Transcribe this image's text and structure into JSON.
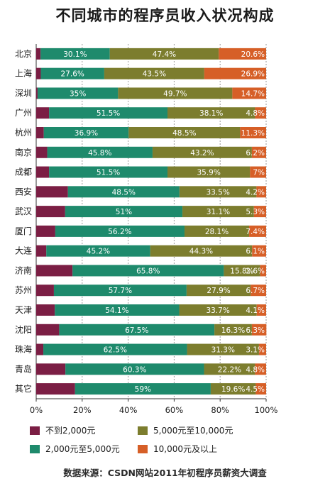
{
  "title": "不同城市的程序员收入状况构成",
  "source": "数据来源：CSDN网站2011年初程序员薪资大调查",
  "colors": [
    "#7b1e44",
    "#1e8a6c",
    "#7c7d2e",
    "#d65f27"
  ],
  "legend": [
    {
      "label": "不到2,000元",
      "color": "#7b1e44"
    },
    {
      "label": "5,000元至10,000元",
      "color": "#7c7d2e"
    },
    {
      "label": "2,000元至5,000元",
      "color": "#1e8a6c"
    },
    {
      "label": "10,000元及以上",
      "color": "#d65f27"
    }
  ],
  "chart_data": {
    "type": "bar",
    "orientation": "horizontal",
    "stacked": true,
    "title": "不同城市的程序员收入状况构成",
    "xlim": [
      0,
      100
    ],
    "x_ticks": [
      "0%",
      "20%",
      "40%",
      "60%",
      "80%",
      "100%"
    ],
    "grid": true,
    "legend_position": "bottom",
    "categories": [
      "北京",
      "上海",
      "深圳",
      "广州",
      "杭州",
      "南京",
      "成都",
      "西安",
      "武汉",
      "厦门",
      "大连",
      "济南",
      "苏州",
      "天津",
      "沈阳",
      "珠海",
      "青岛",
      "其它"
    ],
    "series": [
      {
        "name": "不到2,000元",
        "color": "#7b1e44",
        "values": [
          1.9,
          2.0,
          0.6,
          5.6,
          3.3,
          4.8,
          5.6,
          13.8,
          12.6,
          8.3,
          4.4,
          15.8,
          7.7,
          8.1,
          10.0,
          3.1,
          12.7,
          16.9
        ]
      },
      {
        "name": "2,000元至5,000元",
        "color": "#1e8a6c",
        "values": [
          30.1,
          27.6,
          35,
          51.5,
          36.9,
          45.8,
          51.5,
          48.5,
          51,
          56.2,
          45.2,
          65.8,
          57.7,
          54.1,
          67.5,
          62.5,
          60.3,
          59
        ],
        "labels": [
          "30.1%",
          "27.6%",
          "35%",
          "51.5%",
          "36.9%",
          "45.8%",
          "51.5%",
          "48.5%",
          "51%",
          "56.2%",
          "45.2%",
          "65.8%",
          "57.7%",
          "54.1%",
          "67.5%",
          "62.5%",
          "60.3%",
          "59%"
        ]
      },
      {
        "name": "5,000元至10,000元",
        "color": "#7c7d2e",
        "values": [
          47.4,
          43.5,
          49.7,
          38.1,
          48.5,
          43.2,
          35.9,
          33.5,
          31.1,
          28.1,
          44.3,
          15.8,
          27.9,
          33.7,
          16.3,
          31.3,
          22.2,
          19.6
        ],
        "labels": [
          "47.4%",
          "43.5%",
          "49.7%",
          "38.1%",
          "48.5%",
          "43.2%",
          "35.9%",
          "33.5%",
          "31.1%",
          "28.1%",
          "44.3%",
          "15.8%",
          "27.9%",
          "33.7%",
          "16.3%",
          "31.3%",
          "22.2%",
          "19.6%"
        ]
      },
      {
        "name": "10,000元及以上",
        "color": "#d65f27",
        "values": [
          20.6,
          26.9,
          14.7,
          4.8,
          11.3,
          6.2,
          7,
          4.2,
          5.3,
          7.4,
          6.1,
          2.6,
          6.7,
          4.1,
          6.3,
          3.1,
          4.8,
          4.5
        ],
        "labels": [
          "20.6%",
          "26.9%",
          "14.7%",
          "4.8%",
          "11.3%",
          "6.2%",
          "7%",
          "4.2%",
          "5.3%",
          "7.4%",
          "6.1%",
          "2.6%",
          "6.7%",
          "4.1%",
          "6.3%",
          "3.1%",
          "4.8%",
          "4.5%"
        ]
      }
    ]
  }
}
